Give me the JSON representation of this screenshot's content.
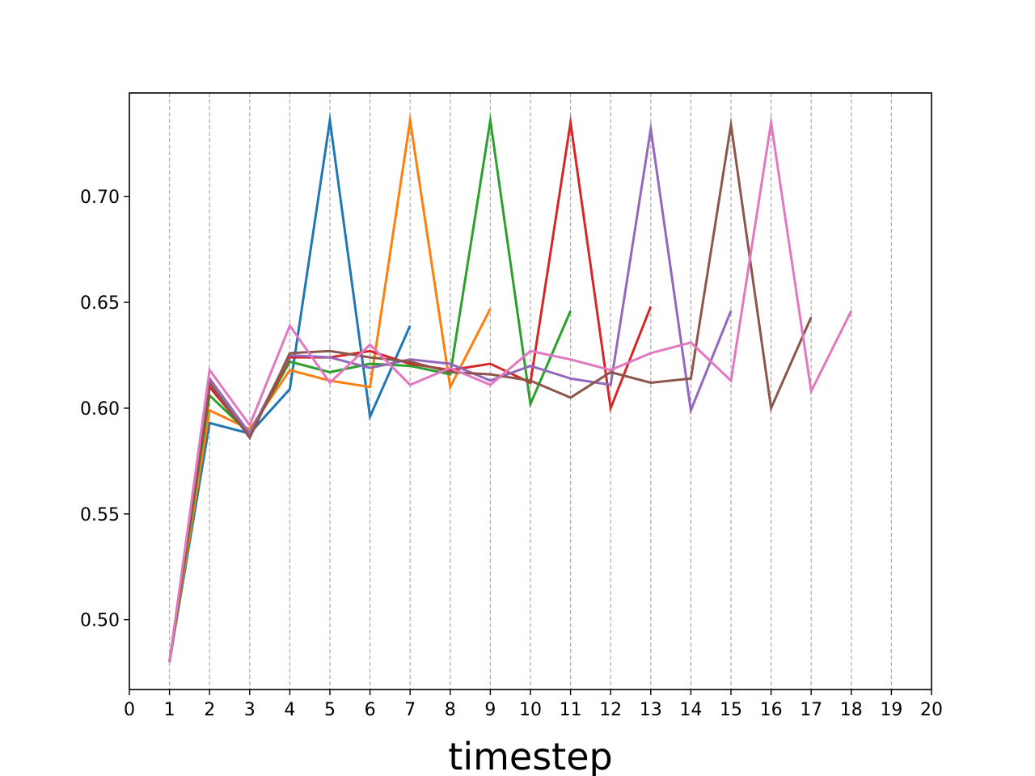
{
  "chart_data": {
    "type": "line",
    "title": "",
    "xlabel": "timestep",
    "ylabel": "",
    "xlim": [
      0,
      20
    ],
    "ylim": [
      0.467,
      0.749
    ],
    "x_ticks": [
      "0",
      "1",
      "2",
      "3",
      "4",
      "5",
      "6",
      "7",
      "8",
      "9",
      "10",
      "11",
      "12",
      "13",
      "14",
      "15",
      "16",
      "17",
      "18",
      "19",
      "20"
    ],
    "y_ticks": [
      "0.50",
      "0.55",
      "0.60",
      "0.65",
      "0.70"
    ],
    "y_tick_values": [
      0.5,
      0.55,
      0.6,
      0.65,
      0.7
    ],
    "grid": "vertical dashed at integer x",
    "series": [
      {
        "color": "#1f77b4",
        "x": [
          1,
          2,
          3,
          4,
          5,
          6,
          7
        ],
        "y": [
          0.48,
          0.593,
          0.588,
          0.609,
          0.736,
          0.596,
          0.639
        ]
      },
      {
        "color": "#ff7f0e",
        "x": [
          1,
          2,
          3,
          4,
          5,
          6,
          7,
          8,
          9
        ],
        "y": [
          0.48,
          0.599,
          0.59,
          0.618,
          0.613,
          0.61,
          0.736,
          0.61,
          0.647
        ]
      },
      {
        "color": "#2ca02c",
        "x": [
          1,
          2,
          3,
          4,
          5,
          6,
          7,
          8,
          9,
          10,
          11
        ],
        "y": [
          0.48,
          0.606,
          0.588,
          0.622,
          0.617,
          0.621,
          0.62,
          0.616,
          0.736,
          0.602,
          0.646
        ]
      },
      {
        "color": "#d62728",
        "x": [
          1,
          2,
          3,
          4,
          5,
          6,
          7,
          8,
          9,
          10,
          11,
          12,
          13
        ],
        "y": [
          0.48,
          0.61,
          0.587,
          0.624,
          0.624,
          0.627,
          0.621,
          0.618,
          0.621,
          0.612,
          0.735,
          0.6,
          0.648
        ]
      },
      {
        "color": "#9467bd",
        "x": [
          1,
          2,
          3,
          4,
          5,
          6,
          7,
          8,
          9,
          10,
          11,
          12,
          13,
          14,
          15
        ],
        "y": [
          0.48,
          0.614,
          0.588,
          0.625,
          0.624,
          0.619,
          0.623,
          0.621,
          0.613,
          0.62,
          0.614,
          0.611,
          0.732,
          0.599,
          0.646
        ]
      },
      {
        "color": "#8c564b",
        "x": [
          1,
          2,
          3,
          4,
          5,
          6,
          7,
          8,
          9,
          10,
          11,
          12,
          13,
          14,
          15,
          16,
          17
        ],
        "y": [
          0.48,
          0.612,
          0.586,
          0.626,
          0.627,
          0.624,
          0.622,
          0.617,
          0.616,
          0.613,
          0.605,
          0.617,
          0.612,
          0.614,
          0.734,
          0.6,
          0.643
        ]
      },
      {
        "color": "#e377c2",
        "x": [
          1,
          2,
          3,
          4,
          5,
          6,
          7,
          8,
          9,
          10,
          11,
          12,
          13,
          14,
          15,
          16,
          17,
          18
        ],
        "y": [
          0.48,
          0.618,
          0.592,
          0.639,
          0.612,
          0.63,
          0.611,
          0.619,
          0.611,
          0.627,
          0.623,
          0.618,
          0.626,
          0.631,
          0.613,
          0.735,
          0.608,
          0.646
        ]
      }
    ]
  }
}
